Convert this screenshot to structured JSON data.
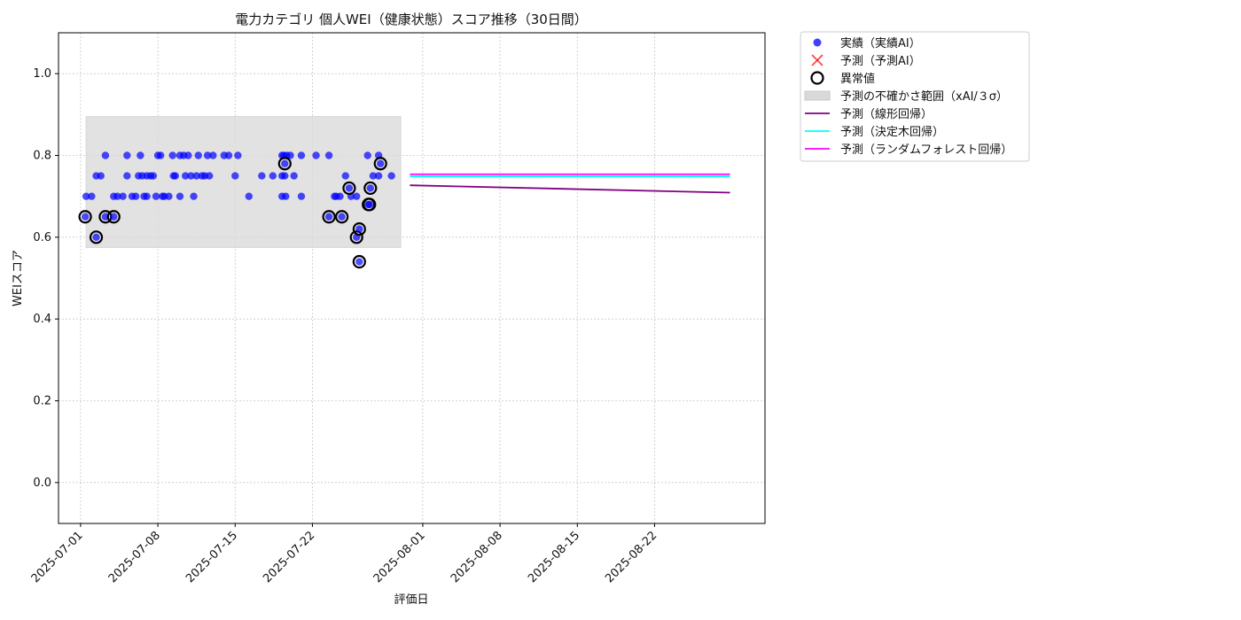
{
  "chart_data": {
    "type": "scatter",
    "title": "電力カテゴリ 個人WEI（健康状態）スコア推移（30日間）",
    "xlabel": "評価日",
    "ylabel": "WEIスコア",
    "xlim": [
      "2025-06-29",
      "2025-09-01"
    ],
    "ylim": [
      -0.1,
      1.1
    ],
    "yticks": [
      0.0,
      0.2,
      0.4,
      0.6,
      0.8,
      1.0
    ],
    "xticks": [
      "2025-07-01",
      "2025-07-08",
      "2025-07-15",
      "2025-07-22",
      "2025-08-01",
      "2025-08-08",
      "2025-08-15",
      "2025-08-22"
    ],
    "grid": true,
    "legend_position": "outside-right-top",
    "colors": {
      "actual": "#0000ff",
      "predicted": "#ff0000",
      "anomaly": "#000000",
      "band": "#d9d9d9",
      "linear": "#800080",
      "tree": "#00ffff",
      "forest": "#ff00ff"
    },
    "legend": [
      {
        "label": "実績（実績AI）",
        "marker": "dot",
        "color": "#0000ff"
      },
      {
        "label": "予測（予測AI）",
        "marker": "x",
        "color": "#ff0000"
      },
      {
        "label": "異常値",
        "marker": "ring",
        "color": "#000000"
      },
      {
        "label": "予測の不確かさ範囲（xAI/３σ）",
        "marker": "band",
        "color": "#d9d9d9"
      },
      {
        "label": "予測（線形回帰）",
        "marker": "line",
        "color": "#800080"
      },
      {
        "label": "予測（決定木回帰）",
        "marker": "line",
        "color": "#00ffff"
      },
      {
        "label": "予測（ランダムフォレスト回帰）",
        "marker": "line",
        "color": "#ff00ff"
      }
    ],
    "uncertainty_band": {
      "x": [
        "2025-07-01 12:00",
        "2025-07-30"
      ],
      "y": [
        0.575,
        0.895
      ]
    },
    "series": [
      {
        "name": "実績（実績AI）",
        "kind": "scatter",
        "points": [
          [
            "2025-07-01 12:00",
            0.7
          ],
          [
            "2025-07-02",
            0.7
          ],
          [
            "2025-07-02 10:00",
            0.75
          ],
          [
            "2025-07-02 20:00",
            0.75
          ],
          [
            "2025-07-03 06:00",
            0.8
          ],
          [
            "2025-07-04",
            0.7
          ],
          [
            "2025-07-04 08:00",
            0.7
          ],
          [
            "2025-07-04 20:00",
            0.7
          ],
          [
            "2025-07-05 05:00",
            0.8
          ],
          [
            "2025-07-05 05:00",
            0.75
          ],
          [
            "2025-07-05 16:00",
            0.7
          ],
          [
            "2025-07-06",
            0.7
          ],
          [
            "2025-07-06 06:00",
            0.75
          ],
          [
            "2025-07-06 10:00",
            0.8
          ],
          [
            "2025-07-06 14:00",
            0.75
          ],
          [
            "2025-07-06 18:00",
            0.7
          ],
          [
            "2025-07-07",
            0.75
          ],
          [
            "2025-07-07",
            0.7
          ],
          [
            "2025-07-07 08:00",
            0.75
          ],
          [
            "2025-07-07 14:00",
            0.75
          ],
          [
            "2025-07-07 20:00",
            0.7
          ],
          [
            "2025-07-08",
            0.8
          ],
          [
            "2025-07-08 06:00",
            0.8
          ],
          [
            "2025-07-08 10:00",
            0.7
          ],
          [
            "2025-07-08 14:00",
            0.7
          ],
          [
            "2025-07-09",
            0.7
          ],
          [
            "2025-07-09 08:00",
            0.8
          ],
          [
            "2025-07-09 10:00",
            0.75
          ],
          [
            "2025-07-09 14:00",
            0.75
          ],
          [
            "2025-07-10",
            0.8
          ],
          [
            "2025-07-10",
            0.7
          ],
          [
            "2025-07-10 08:00",
            0.8
          ],
          [
            "2025-07-10 12:00",
            0.75
          ],
          [
            "2025-07-10 18:00",
            0.8
          ],
          [
            "2025-07-11",
            0.75
          ],
          [
            "2025-07-11 06:00",
            0.7
          ],
          [
            "2025-07-11 12:00",
            0.75
          ],
          [
            "2025-07-11 16:00",
            0.8
          ],
          [
            "2025-07-12",
            0.75
          ],
          [
            "2025-07-12 06:00",
            0.75
          ],
          [
            "2025-07-12 12:00",
            0.8
          ],
          [
            "2025-07-12 16:00",
            0.75
          ],
          [
            "2025-07-13",
            0.8
          ],
          [
            "2025-07-14",
            0.8
          ],
          [
            "2025-07-14 10:00",
            0.8
          ],
          [
            "2025-07-15",
            0.75
          ],
          [
            "2025-07-15 06:00",
            0.8
          ],
          [
            "2025-07-16 06:00",
            0.7
          ],
          [
            "2025-07-17 10:00",
            0.75
          ],
          [
            "2025-07-18 10:00",
            0.75
          ],
          [
            "2025-07-19 06:00",
            0.7
          ],
          [
            "2025-07-19 06:00",
            0.75
          ],
          [
            "2025-07-19 06:00",
            0.8
          ],
          [
            "2025-07-19 10:00",
            0.8
          ],
          [
            "2025-07-19 12:00",
            0.75
          ],
          [
            "2025-07-19 14:00",
            0.7
          ],
          [
            "2025-07-19 16:00",
            0.8
          ],
          [
            "2025-07-20",
            0.8
          ],
          [
            "2025-07-20 08:00",
            0.75
          ],
          [
            "2025-07-21",
            0.7
          ],
          [
            "2025-07-21",
            0.8
          ],
          [
            "2025-07-22 08:00",
            0.8
          ],
          [
            "2025-07-23 12:00",
            0.8
          ],
          [
            "2025-07-24",
            0.7
          ],
          [
            "2025-07-24 04:00",
            0.7
          ],
          [
            "2025-07-24 12:00",
            0.7
          ],
          [
            "2025-07-25",
            0.75
          ],
          [
            "2025-07-25 12:00",
            0.7
          ],
          [
            "2025-07-26",
            0.7
          ],
          [
            "2025-07-27",
            0.8
          ],
          [
            "2025-07-27 12:00",
            0.75
          ],
          [
            "2025-07-28",
            0.75
          ],
          [
            "2025-07-28",
            0.8
          ],
          [
            "2025-07-29 04:00",
            0.75
          ]
        ]
      },
      {
        "name": "異常値",
        "kind": "anomaly",
        "points": [
          [
            "2025-07-01 10:00",
            0.65
          ],
          [
            "2025-07-02 10:00",
            0.6
          ],
          [
            "2025-07-03 06:00",
            0.65
          ],
          [
            "2025-07-04",
            0.65
          ],
          [
            "2025-07-19 12:00",
            0.78
          ],
          [
            "2025-07-23 12:00",
            0.65
          ],
          [
            "2025-07-24 16:00",
            0.65
          ],
          [
            "2025-07-25 08:00",
            0.72
          ],
          [
            "2025-07-26",
            0.6
          ],
          [
            "2025-07-26 06:00",
            0.54
          ],
          [
            "2025-07-26 06:00",
            0.62
          ],
          [
            "2025-07-27 02:00",
            0.68
          ],
          [
            "2025-07-27 04:00",
            0.68
          ],
          [
            "2025-07-27 06:00",
            0.72
          ],
          [
            "2025-07-28 04:00",
            0.78
          ]
        ]
      },
      {
        "name": "予測（線形回帰）",
        "kind": "line",
        "points": [
          [
            "2025-07-30 20:00",
            0.727
          ],
          [
            "2025-08-28 20:00",
            0.709
          ]
        ]
      },
      {
        "name": "予測（決定木回帰）",
        "kind": "line",
        "points": [
          [
            "2025-07-30 20:00",
            0.749
          ],
          [
            "2025-08-28 20:00",
            0.749
          ]
        ]
      },
      {
        "name": "予測（ランダムフォレスト回帰）",
        "kind": "line",
        "points": [
          [
            "2025-07-30 20:00",
            0.754
          ],
          [
            "2025-08-28 20:00",
            0.754
          ]
        ]
      }
    ]
  }
}
